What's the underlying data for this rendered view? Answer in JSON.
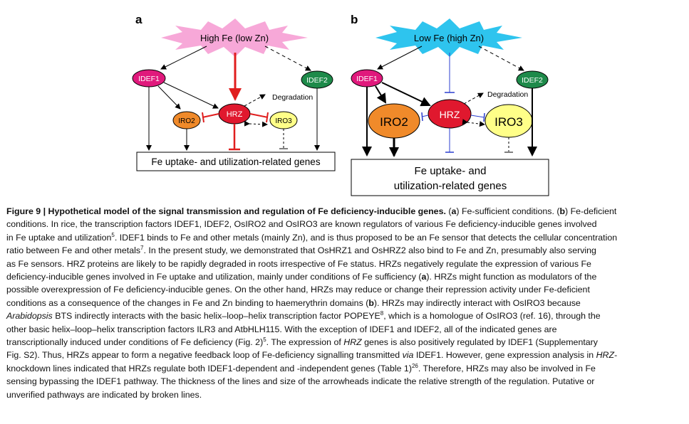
{
  "panel_a": {
    "label": "a",
    "condition": "High Fe (low Zn)",
    "idef1": "IDEF1",
    "idef2": "IDEF2",
    "hrz": "HRZ",
    "iro2": "IRO2",
    "iro3": "IRO3",
    "degradation": "Degradation",
    "target": "Fe uptake- and utilization-related genes"
  },
  "panel_b": {
    "label": "b",
    "condition": "Low Fe (high Zn)",
    "idef1": "IDEF1",
    "idef2": "IDEF2",
    "hrz": "HRZ",
    "iro2": "IRO2",
    "iro3": "IRO3",
    "degradation": "Degradation",
    "target_line1": "Fe uptake- and",
    "target_line2": "utilization-related genes"
  },
  "caption": {
    "title": "Figure 9 | Hypothetical model of the signal transmission and regulation of Fe deficiency-inducible genes.",
    "l1a": " (",
    "l1b": "a",
    "l1c": ") Fe-sufficient conditions. (",
    "l1d": "b",
    "l1e": ") Fe-deficient",
    "l2": "conditions. In rice, the transcription factors IDEF1, IDEF2, OsIRO2 and OsIRO3 are known regulators of various Fe deficiency-inducible genes involved",
    "l3a": "in Fe uptake and utilization",
    "l3sup": "5",
    "l3b": ". IDEF1 binds to Fe and other metals (mainly Zn), and is thus proposed to be an Fe sensor that detects the cellular concentration",
    "l4a": "ratio between Fe and other metals",
    "l4sup": "7",
    "l4b": ". In the present study, we demonstrated that OsHRZ1 and OsHRZ2 also bind to Fe and Zn, presumably also serving",
    "l5": "as Fe sensors. HRZ proteins are likely to be rapidly degraded in roots irrespective of Fe status. HRZs negatively regulate the expression of various Fe",
    "l6a": "deficiency-inducible genes involved in Fe uptake and utilization, mainly under conditions of Fe sufficiency (",
    "l6b": "a",
    "l6c": "). HRZs might function as modulators of the",
    "l7": "possible overexpression of Fe deficiency-inducible genes. On the other hand, HRZs may reduce or change their repression activity under Fe-deficient",
    "l8a": "conditions as a consequence of the changes in Fe and Zn binding to haemerythrin domains (",
    "l8b": "b",
    "l8c": "). HRZs may indirectly interact with OsIRO3 because",
    "l9a": "Arabidopsis",
    "l9b": " BTS indirectly interacts with the basic helix–loop–helix transcription factor POPEYE",
    "l9sup": "8",
    "l9c": ", which is a homologue of OsIRO3 (ref. 16), through the",
    "l10": "other basic helix–loop–helix transcription factors ILR3 and AtbHLH115. With the exception of IDEF1 and IDEF2, all of the indicated genes are",
    "l11a": "transcriptionally induced under conditions of Fe deficiency (Fig. 2)",
    "l11sup": "5",
    "l11b": ". The expression of ",
    "l11c": "HRZ",
    "l11d": " genes is also positively regulated by IDEF1 (Supplementary",
    "l12a": "Fig. S2). Thus, HRZs appear to form a negative feedback loop of Fe-deficiency signalling transmitted ",
    "l12b": "via",
    "l12c": " IDEF1. However, gene expression analysis in ",
    "l12d": "HRZ",
    "l12e": "-",
    "l13a": "knockdown lines indicated that HRZs regulate both IDEF1-dependent and -independent genes (Table 1)",
    "l13sup": "26",
    "l13b": ". Therefore, HRZs may also be involved in Fe",
    "l14": "sensing bypassing the IDEF1 pathway. The thickness of the lines and size of the arrowheads indicate the relative strength of the regulation. Putative or",
    "l15": "unverified pathways are indicated by broken lines."
  },
  "colors": {
    "high_fe_burst": "#f7a8d8",
    "low_fe_burst": "#2ec4ee",
    "idef1": "#e0197c",
    "idef2": "#1e8a4a",
    "hrz": "#e0182e",
    "iro2": "#f08a2a",
    "iro3": "#ffff88",
    "repress_red": "#e01e1e",
    "repress_blue": "#2b3fcf"
  }
}
